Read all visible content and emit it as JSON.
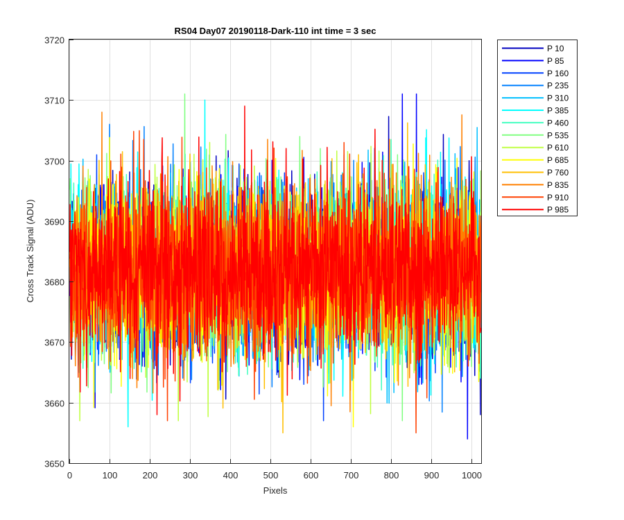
{
  "chart_data": {
    "type": "line",
    "title": "RS04 Day07 20190118-Dark-110 int time = 3 sec",
    "xlabel": "Pixels",
    "ylabel": "Cross Track Signal (ADU)",
    "xlim": [
      0,
      1024
    ],
    "ylim": [
      3650,
      3720
    ],
    "xticks": [
      "0",
      "100",
      "200",
      "300",
      "400",
      "500",
      "600",
      "700",
      "800",
      "900",
      "1000"
    ],
    "yticks": [
      "3650",
      "3660",
      "3670",
      "3680",
      "3690",
      "3700",
      "3710",
      "3720"
    ],
    "grid": true,
    "legend_position": "outside-top-right",
    "series": [
      {
        "name": "P 10",
        "color": "#0000bf",
        "mean": 3682,
        "spread": 7
      },
      {
        "name": "P 85",
        "color": "#0000ff",
        "mean": 3682,
        "spread": 7
      },
      {
        "name": "P 160",
        "color": "#0040ff",
        "mean": 3682,
        "spread": 7
      },
      {
        "name": "P 235",
        "color": "#0080ff",
        "mean": 3682,
        "spread": 7
      },
      {
        "name": "P 310",
        "color": "#00bfff",
        "mean": 3682,
        "spread": 7
      },
      {
        "name": "P 385",
        "color": "#00ffff",
        "mean": 3682,
        "spread": 7
      },
      {
        "name": "P 460",
        "color": "#40ffbf",
        "mean": 3682,
        "spread": 7
      },
      {
        "name": "P 535",
        "color": "#80ff80",
        "mean": 3682,
        "spread": 7
      },
      {
        "name": "P 610",
        "color": "#bfff40",
        "mean": 3682,
        "spread": 7
      },
      {
        "name": "P 685",
        "color": "#ffff00",
        "mean": 3682,
        "spread": 7
      },
      {
        "name": "P 760",
        "color": "#ffbf00",
        "mean": 3682,
        "spread": 7
      },
      {
        "name": "P 835",
        "color": "#ff8000",
        "mean": 3682,
        "spread": 7
      },
      {
        "name": "P 910",
        "color": "#ff4000",
        "mean": 3682,
        "spread": 7
      },
      {
        "name": "P 985",
        "color": "#ff0000",
        "mean": 3682,
        "spread": 7
      }
    ],
    "annotated_extremes": [
      {
        "series": "P 10",
        "x": 1022,
        "y": 3658
      },
      {
        "series": "P 85",
        "x": 828,
        "y": 3711
      },
      {
        "series": "P 85",
        "x": 863,
        "y": 3711
      },
      {
        "series": "P 85",
        "x": 990,
        "y": 3654
      },
      {
        "series": "P 235",
        "x": 100,
        "y": 3706
      },
      {
        "series": "P 385",
        "x": 337,
        "y": 3710
      },
      {
        "series": "P 385",
        "x": 146,
        "y": 3656
      },
      {
        "series": "P 535",
        "x": 287,
        "y": 3711
      },
      {
        "series": "P 760",
        "x": 531,
        "y": 3655
      },
      {
        "series": "P 685",
        "x": 706,
        "y": 3656
      },
      {
        "series": "P 910",
        "x": 862,
        "y": 3655
      },
      {
        "series": "P 985",
        "x": 436,
        "y": 3709
      },
      {
        "series": "P 985",
        "x": 218,
        "y": 3658
      }
    ]
  }
}
